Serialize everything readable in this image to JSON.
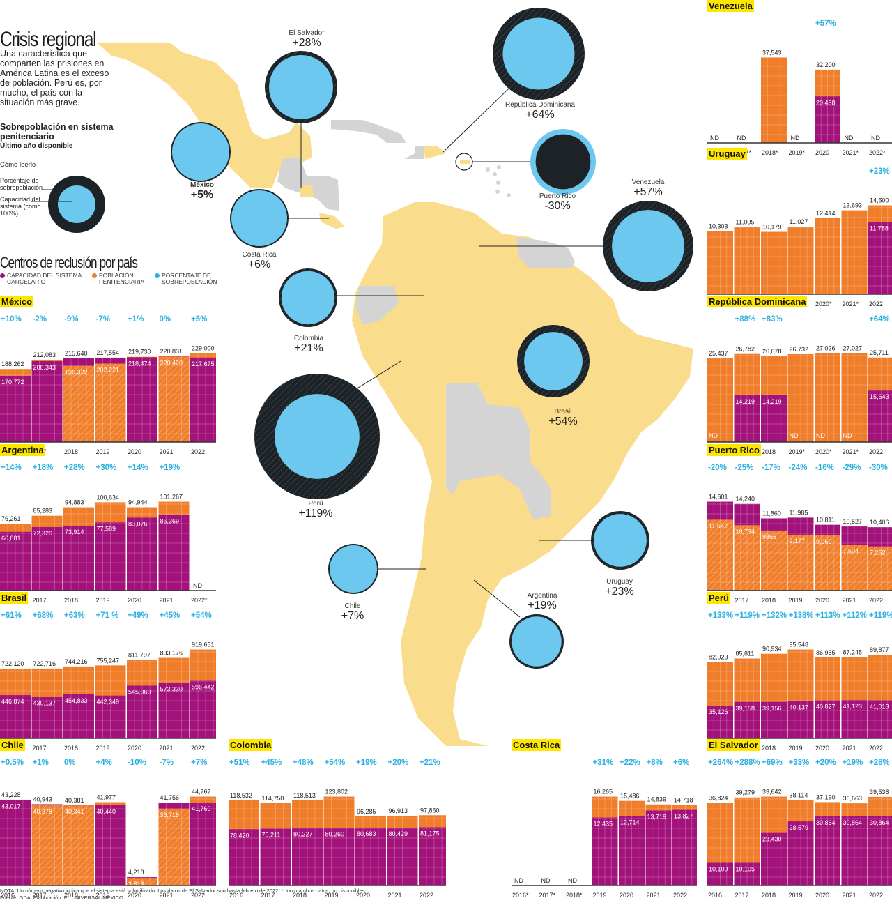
{
  "header": {
    "title": "Crisis regional",
    "intro": "Una característica que comparten las prisiones en América Latina es el exceso de población. Perú es, por mucho, el país con la situación más grave.",
    "subtitle": "Sobrepoblación en sistema penitenciario",
    "subtitle_note": "Último año disponible",
    "how_to_read": "Cómo leerlo",
    "howto_label_1": "Porcentaje de sobrepoblación",
    "howto_label_2": "Capacidad del sistema (como 100%)"
  },
  "section": {
    "title": "Centros de reclusión por país",
    "legend": [
      {
        "label": "CAPACIDAD DEL SISTEMA CARCELARIO",
        "color": "#a3117a"
      },
      {
        "label": "POBLACIÓN PENITENCIARIA",
        "color": "#f07d2a"
      },
      {
        "label": "PORCENTAJE DE SOBREPOBLACIÓN",
        "color": "#2bb0e0"
      }
    ]
  },
  "colors": {
    "capacity": "#a3117a",
    "population": "#f07d2a",
    "overpop": "#2bb0e0",
    "map_land": "#f9dc8c",
    "map_other": "#d4d4d4",
    "ring": "#1d2226",
    "circle": "#6cc8ee",
    "tag": "#ffe600"
  },
  "map": {
    "circles": [
      {
        "name": "El Salvador",
        "pct": "+28%",
        "value": 28
      },
      {
        "name": "México",
        "pct": "+5%",
        "value": 5
      },
      {
        "name": "Costa Rica",
        "pct": "+6%",
        "value": 6
      },
      {
        "name": "República Dominicana",
        "pct": "+64%",
        "value": 64
      },
      {
        "name": "Puerto Rico",
        "pct": "-30%",
        "value": -30
      },
      {
        "name": "Venezuela",
        "pct": "+57%",
        "value": 57
      },
      {
        "name": "Colombia",
        "pct": "+21%",
        "value": 21
      },
      {
        "name": "Brasil",
        "pct": "+54%",
        "value": 54
      },
      {
        "name": "Perú",
        "pct": "+119%",
        "value": 119
      },
      {
        "name": "Uruguay",
        "pct": "+23%",
        "value": 23
      },
      {
        "name": "Chile",
        "pct": "+7%",
        "value": 7
      },
      {
        "name": "Argentina",
        "pct": "+19%",
        "value": 19
      }
    ]
  },
  "chart_data": [
    {
      "type": "bar",
      "title": "México",
      "categories": [
        "2016",
        "2017",
        "2018",
        "2019",
        "2020",
        "2021",
        "2022"
      ],
      "series": [
        {
          "name": "Capacidad del sistema carcelario",
          "values": [
            170772,
            208343,
            215640,
            217554,
            218474,
            220831,
            217675
          ]
        },
        {
          "name": "Población penitenciaria",
          "values": [
            188262,
            212083,
            196322,
            202221,
            219730,
            220420,
            229000
          ]
        }
      ],
      "population_labels": [
        "188,262",
        "212,083",
        "215,640",
        "217,554",
        "219,730",
        "220,831",
        "229,000"
      ],
      "capacity_labels": [
        "170,772",
        "208,343",
        "196,322",
        "202,221",
        "218,474",
        "220,420",
        "217,675"
      ],
      "pct": [
        "+10%",
        "-2%",
        "-9%",
        "-7%",
        "+1%",
        "0%",
        "+5%"
      ]
    },
    {
      "type": "bar",
      "title": "Argentina",
      "categories": [
        "2016",
        "2017",
        "2018",
        "2019",
        "2020",
        "2021",
        "2022*"
      ],
      "series": [
        {
          "name": "Capacidad del sistema carcelario",
          "values": [
            66881,
            72320,
            73914,
            77589,
            83076,
            86369,
            null
          ]
        },
        {
          "name": "Población penitenciaria",
          "values": [
            76261,
            85283,
            94883,
            100634,
            94944,
            101267,
            null
          ]
        }
      ],
      "population_labels": [
        "76,261",
        "85,283",
        "94,883",
        "100,634",
        "94,944",
        "101,267",
        "ND"
      ],
      "capacity_labels": [
        "66,881",
        "72,320",
        "73,914",
        "77,589",
        "83,076",
        "86,369",
        ""
      ],
      "pct": [
        "+14%",
        "+18%",
        "+28%",
        "+30%",
        "+14%",
        "+19%",
        ""
      ]
    },
    {
      "type": "bar",
      "title": "Brasil",
      "categories": [
        "2016",
        "2017",
        "2018",
        "2019",
        "2020",
        "2021",
        "2022"
      ],
      "series": [
        {
          "name": "Capacidad del sistema carcelario",
          "values": [
            446874,
            430137,
            454833,
            442349,
            545060,
            573330,
            596442
          ]
        },
        {
          "name": "Población penitenciaria",
          "values": [
            722120,
            722716,
            744216,
            755247,
            811707,
            833176,
            919651
          ]
        }
      ],
      "population_labels": [
        "722,120",
        "722,716",
        "744,216",
        "755,247",
        "811,707",
        "833,176",
        "919,651"
      ],
      "capacity_labels": [
        "446,874",
        "430,137",
        "454,833",
        "442,349",
        "545,060",
        "573,330",
        "596,442"
      ],
      "pct": [
        "+61%",
        "+68%",
        "+63%",
        "+71 %",
        "+49%",
        "+45%",
        "+54%"
      ]
    },
    {
      "type": "bar",
      "title": "Chile",
      "categories": [
        "2016",
        "2017",
        "2018",
        "2019",
        "2020",
        "2021",
        "2022"
      ],
      "series": [
        {
          "name": "Capacidad del sistema carcelario",
          "values": [
            43017,
            40943,
            40381,
            40440,
            4218,
            41756,
            41760
          ]
        },
        {
          "name": "Población penitenciaria",
          "values": [
            43228,
            40378,
            40341,
            41977,
            3813,
            38718,
            44767
          ]
        }
      ],
      "population_labels": [
        "43,228",
        "40,943",
        "40,381",
        "41,977",
        "4,218",
        "41,756",
        "44,767"
      ],
      "capacity_labels": [
        "43,017",
        "40,378",
        "40,341",
        "40,440",
        "3,813",
        "38,718",
        "41,760"
      ],
      "pct": [
        "+0.5%",
        "+1%",
        "0%",
        "+4%",
        "-10%",
        "-7%",
        "+7%"
      ]
    },
    {
      "type": "bar",
      "title": "Colombia",
      "categories": [
        "2016",
        "2017",
        "2018",
        "2019",
        "2020",
        "2021",
        "2022"
      ],
      "series": [
        {
          "name": "Capacidad del sistema carcelario",
          "values": [
            78420,
            79211,
            80227,
            80260,
            80683,
            80429,
            81175
          ]
        },
        {
          "name": "Población penitenciaria",
          "values": [
            118532,
            114750,
            118513,
            123802,
            96285,
            96913,
            97860
          ]
        }
      ],
      "population_labels": [
        "118,532",
        "114,750",
        "118,513",
        "123,802",
        "96,285",
        "96,913",
        "97,860"
      ],
      "capacity_labels": [
        "78,420",
        "79,211",
        "80,227",
        "80,260",
        "80,683",
        "80,429",
        "81,175"
      ],
      "pct": [
        "+51%",
        "+45%",
        "+48%",
        "+54%",
        "+19%",
        "+20%",
        "+21%"
      ]
    },
    {
      "type": "bar",
      "title": "Costa Rica",
      "categories": [
        "2016*",
        "2017*",
        "2018*",
        "2019",
        "2020",
        "2021",
        "2022"
      ],
      "series": [
        {
          "name": "Capacidad del sistema carcelario",
          "values": [
            null,
            null,
            null,
            12435,
            12714,
            13719,
            13827
          ]
        },
        {
          "name": "Población penitenciaria",
          "values": [
            null,
            null,
            null,
            16265,
            15486,
            14839,
            14718
          ]
        }
      ],
      "population_labels": [
        "ND",
        "ND",
        "ND",
        "16,265",
        "15,486",
        "14,839",
        "14,718"
      ],
      "capacity_labels": [
        "",
        "",
        "",
        "12,435",
        "12,714",
        "13,719",
        "13,827"
      ],
      "pct": [
        "",
        "",
        "",
        "+31%",
        "+22%",
        "+8%",
        "+6%"
      ]
    },
    {
      "type": "bar",
      "title": "Venezuela",
      "categories": [
        "2016*",
        "2017*",
        "2018*",
        "2019*",
        "2020",
        "2021*",
        "2022*"
      ],
      "series": [
        {
          "name": "Capacidad del sistema carcelario",
          "values": [
            null,
            null,
            null,
            null,
            20438,
            null,
            null
          ]
        },
        {
          "name": "Población penitenciaria",
          "values": [
            null,
            null,
            37543,
            null,
            32200,
            null,
            null
          ]
        }
      ],
      "population_labels": [
        "ND",
        "ND",
        "37,543",
        "ND",
        "32,200",
        "ND",
        "ND"
      ],
      "capacity_labels": [
        "",
        "",
        "",
        "",
        "20,438",
        "",
        ""
      ],
      "pct": [
        "",
        "",
        "",
        "",
        "+57%",
        "",
        ""
      ]
    },
    {
      "type": "bar",
      "title": "Uruguay",
      "categories": [
        "2016*",
        "2017*",
        "2018*",
        "2019*",
        "2020*",
        "2021*",
        "2022"
      ],
      "series": [
        {
          "name": "Capacidad del sistema carcelario",
          "values": [
            null,
            null,
            null,
            null,
            null,
            null,
            11788
          ]
        },
        {
          "name": "Población penitenciaria",
          "values": [
            10303,
            11005,
            10179,
            11027,
            12414,
            13693,
            14500
          ]
        }
      ],
      "population_labels": [
        "10,303",
        "11,005",
        "10,179",
        "11,027",
        "12,414",
        "13,693",
        "14,500"
      ],
      "capacity_labels": [
        "",
        "",
        "",
        "",
        "",
        "",
        "11,788"
      ],
      "pct": [
        "",
        "",
        "",
        "",
        "",
        "",
        "+23%"
      ]
    },
    {
      "type": "bar",
      "title": "República Dominicana",
      "categories": [
        "2016*",
        "2017",
        "2018",
        "2019*",
        "2020*",
        "2021*",
        "2022"
      ],
      "series": [
        {
          "name": "Capacidad del sistema carcelario",
          "values": [
            null,
            14219,
            14219,
            null,
            null,
            null,
            15643
          ]
        },
        {
          "name": "Población penitenciaria",
          "values": [
            25437,
            26782,
            26078,
            26732,
            27026,
            27027,
            25711
          ]
        }
      ],
      "population_labels": [
        "25,437",
        "26,782",
        "26,078",
        "26,732",
        "27,026",
        "27,027",
        "25,711"
      ],
      "capacity_labels": [
        "ND",
        "14,219",
        "14,219",
        "ND",
        "ND",
        "ND",
        "15,643"
      ],
      "pct": [
        "",
        "+88%",
        "+83%",
        "",
        "",
        "",
        "+64%"
      ]
    },
    {
      "type": "bar",
      "title": "Puerto Rico",
      "categories": [
        "2016",
        "2017",
        "2018",
        "2019",
        "2020",
        "2021",
        "2022"
      ],
      "series": [
        {
          "name": "Capacidad del sistema carcelario",
          "values": [
            14601,
            14240,
            11860,
            11985,
            10811,
            10527,
            10406
          ]
        },
        {
          "name": "Población penitenciaria",
          "values": [
            11642,
            10734,
            9866,
            9177,
            9060,
            7504,
            7252
          ]
        }
      ],
      "population_labels": [
        "14,601",
        "14,240",
        "11,860",
        "11,985",
        "10,811",
        "10,527",
        "10,406"
      ],
      "capacity_labels": [
        "11,642",
        "10,734",
        "9866",
        "9,177",
        "9,060",
        "7,504",
        "7,252"
      ],
      "pct": [
        "-20%",
        "-25%",
        "-17%",
        "-24%",
        "-16%",
        "-29%",
        "-30%"
      ]
    },
    {
      "type": "bar",
      "title": "Perú",
      "categories": [
        "2016",
        "2017",
        "2018",
        "2019",
        "2020",
        "2021",
        "2022"
      ],
      "series": [
        {
          "name": "Capacidad del sistema carcelario",
          "values": [
            35126,
            39158,
            39156,
            40137,
            40827,
            41123,
            41018
          ]
        },
        {
          "name": "Población penitenciaria",
          "values": [
            82023,
            85811,
            90934,
            95548,
            86955,
            87245,
            89877
          ]
        }
      ],
      "population_labels": [
        "82,023",
        "85,811",
        "90,934",
        "95,548",
        "86,955",
        "87,245",
        "89,877"
      ],
      "capacity_labels": [
        "35,126",
        "39,158",
        "39,156",
        "40,137",
        "40,827",
        "41,123",
        "41,018"
      ],
      "pct": [
        "+133%",
        "+119%",
        "+132%",
        "+138%",
        "+113%",
        "+112%",
        "+119%"
      ]
    },
    {
      "type": "bar",
      "title": "El Salvador",
      "categories": [
        "2016",
        "2017",
        "2018",
        "2019",
        "2020",
        "2021",
        "2022"
      ],
      "series": [
        {
          "name": "Capacidad del sistema carcelario",
          "values": [
            10109,
            10105,
            23430,
            28579,
            30864,
            30864,
            30864
          ]
        },
        {
          "name": "Población penitenciaria",
          "values": [
            36824,
            39279,
            39642,
            38114,
            37190,
            36663,
            39538
          ]
        }
      ],
      "population_labels": [
        "36,824",
        "39,279",
        "39,642",
        "38,114",
        "37,190",
        "36,663",
        "39,538"
      ],
      "capacity_labels": [
        "10,109",
        "10,105",
        "23,430",
        "28,579",
        "30,864",
        "30,864",
        "30,864"
      ],
      "pct": [
        "+264%",
        "+288%",
        "+69%",
        "+33%",
        "+20%",
        "+19%",
        "+28%"
      ]
    }
  ],
  "footer": {
    "note": "NOTA: Un número negativo indica que el sistema está subutilizado. Los datos de El Salvador son hasta febrero de 2022. *Uno o ambos datos, no disponibles.",
    "source": "Fuente: GDA. Elaboración: EL UNIVERSAL/MÉXICO"
  }
}
